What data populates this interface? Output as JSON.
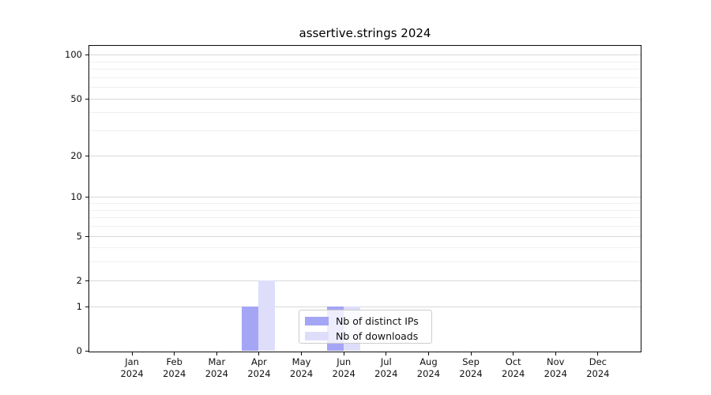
{
  "chart_data": {
    "type": "bar",
    "title": "assertive.strings 2024",
    "categories": [
      "Jan",
      "Feb",
      "Mar",
      "Apr",
      "May",
      "Jun",
      "Jul",
      "Aug",
      "Sep",
      "Oct",
      "Nov",
      "Dec"
    ],
    "year": "2024",
    "series": [
      {
        "name": "Nb of distinct IPs",
        "color": "#a5a5f6",
        "values": [
          0,
          0,
          0,
          1,
          0,
          1,
          0,
          0,
          0,
          0,
          0,
          0
        ]
      },
      {
        "name": "Nb of downloads",
        "color": "#dedefb",
        "values": [
          0,
          0,
          0,
          2,
          0,
          1,
          0,
          0,
          0,
          0,
          0,
          0
        ]
      }
    ],
    "yscale": "log1p",
    "ylim": [
      0,
      115
    ],
    "yticks": [
      0,
      1,
      2,
      5,
      10,
      20,
      50,
      100
    ],
    "minor_yticks": [
      3,
      4,
      6,
      7,
      8,
      9,
      30,
      40,
      60,
      70,
      80,
      90
    ],
    "grid": "horizontal",
    "legend_position": "lower center"
  },
  "colors": {
    "major_grid": "#d8d8d8",
    "minor_grid": "#f0f0f0",
    "axis": "#0a0a0a"
  }
}
